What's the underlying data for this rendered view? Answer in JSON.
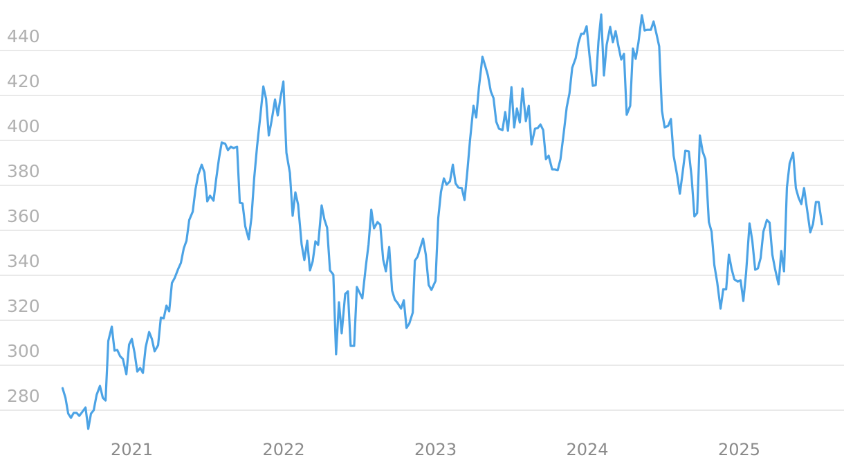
{
  "chart_data": {
    "type": "line",
    "color": "#4ca3e5",
    "grid": true,
    "xlim": [
      2020.15,
      2025.69
    ],
    "xticks": [
      2021,
      2022,
      2023,
      2024,
      2025
    ],
    "ylim": [
      266,
      458
    ],
    "yticks": [
      280,
      300,
      320,
      340,
      360,
      380,
      400,
      420,
      440
    ],
    "x": [
      2020.544,
      2020.563,
      2020.581,
      2020.599,
      2020.617,
      2020.636,
      2020.654,
      2020.672,
      2020.695,
      2020.713,
      2020.731,
      2020.749,
      2020.768,
      2020.79,
      2020.809,
      2020.827,
      2020.845,
      2020.868,
      2020.886,
      2020.904,
      2020.923,
      2020.941,
      2020.964,
      2020.982,
      2021.0,
      2021.018,
      2021.036,
      2021.055,
      2021.073,
      2021.091,
      2021.114,
      2021.132,
      2021.15,
      2021.173,
      2021.191,
      2021.21,
      2021.228,
      2021.246,
      2021.264,
      2021.282,
      2021.305,
      2021.323,
      2021.342,
      2021.36,
      2021.378,
      2021.401,
      2021.419,
      2021.437,
      2021.46,
      2021.478,
      2021.497,
      2021.515,
      2021.538,
      2021.556,
      2021.574,
      2021.592,
      2021.615,
      2021.633,
      2021.652,
      2021.67,
      2021.693,
      2021.711,
      2021.729,
      2021.747,
      2021.77,
      2021.788,
      2021.806,
      2021.825,
      2021.847,
      2021.866,
      2021.884,
      2021.902,
      2021.92,
      2021.943,
      2021.961,
      2021.98,
      2021.998,
      2022.018,
      2022.041,
      2022.059,
      2022.077,
      2022.095,
      2022.118,
      2022.136,
      2022.155,
      2022.173,
      2022.191,
      2022.209,
      2022.227,
      2022.25,
      2022.268,
      2022.286,
      2022.305,
      2022.327,
      2022.345,
      2022.364,
      2022.382,
      2022.405,
      2022.423,
      2022.441,
      2022.464,
      2022.482,
      2022.5,
      2022.518,
      2022.541,
      2022.559,
      2022.577,
      2022.595,
      2022.618,
      2022.636,
      2022.655,
      2022.673,
      2022.695,
      2022.714,
      2022.732,
      2022.75,
      2022.773,
      2022.791,
      2022.809,
      2022.827,
      2022.85,
      2022.864,
      2022.882,
      2022.9,
      2022.918,
      2022.936,
      2022.955,
      2022.973,
      2023.0,
      2023.018,
      2023.036,
      2023.055,
      2023.073,
      2023.095,
      2023.114,
      2023.132,
      2023.15,
      2023.173,
      2023.191,
      2023.209,
      2023.227,
      2023.25,
      2023.268,
      2023.286,
      2023.309,
      2023.327,
      2023.345,
      2023.364,
      2023.382,
      2023.4,
      2023.418,
      2023.441,
      2023.459,
      2023.477,
      2023.5,
      2023.518,
      2023.536,
      2023.555,
      2023.573,
      2023.595,
      2023.614,
      2023.632,
      2023.655,
      2023.673,
      2023.691,
      2023.709,
      2023.727,
      2023.745,
      2023.768,
      2023.786,
      2023.805,
      2023.823,
      2023.845,
      2023.864,
      2023.882,
      2023.9,
      2023.923,
      2023.941,
      2023.959,
      2023.977,
      2023.995,
      2024.014,
      2024.036,
      2024.055,
      2024.073,
      2024.091,
      2024.109,
      2024.127,
      2024.15,
      2024.168,
      2024.186,
      2024.205,
      2024.223,
      2024.241,
      2024.259,
      2024.282,
      2024.3,
      2024.318,
      2024.336,
      2024.359,
      2024.377,
      2024.395,
      2024.418,
      2024.436,
      2024.455,
      2024.473,
      2024.491,
      2024.509,
      2024.532,
      2024.55,
      2024.568,
      2024.591,
      2024.609,
      2024.627,
      2024.645,
      2024.668,
      2024.686,
      2024.705,
      2024.723,
      2024.741,
      2024.759,
      2024.777,
      2024.8,
      2024.818,
      2024.836,
      2024.855,
      2024.877,
      2024.895,
      2024.914,
      2024.932,
      2024.95,
      2024.968,
      2024.991,
      2025.009,
      2025.027,
      2025.045,
      2025.068,
      2025.086,
      2025.105,
      2025.123,
      2025.141,
      2025.159,
      2025.182,
      2025.2,
      2025.218,
      2025.236,
      2025.259,
      2025.277,
      2025.295,
      2025.314,
      2025.332,
      2025.355,
      2025.373,
      2025.391,
      2025.409,
      2025.427,
      2025.445,
      2025.468,
      2025.486,
      2025.505,
      2025.523,
      2025.545
    ],
    "values": [
      289.8,
      285.5,
      278.5,
      276.6,
      278.8,
      278.8,
      277.5,
      279.1,
      281.2,
      271.7,
      278.5,
      280,
      286.8,
      290.8,
      285.5,
      284.3,
      310.8,
      317.2,
      306.5,
      306.8,
      304,
      302.8,
      296,
      309.2,
      311.7,
      305.5,
      297.2,
      298.8,
      296.6,
      308,
      314.8,
      311.7,
      306.2,
      308.9,
      321.2,
      320.9,
      326.5,
      324,
      336.6,
      338.8,
      342.8,
      345.5,
      352,
      355.4,
      364.6,
      368.3,
      378.2,
      384.6,
      389.2,
      385.8,
      372.9,
      375.4,
      373.2,
      383.1,
      392,
      399.1,
      398.5,
      395.7,
      397.2,
      396.6,
      397.2,
      372.3,
      372,
      361.8,
      356,
      365.8,
      383.4,
      397.5,
      411.4,
      424,
      418.5,
      402.2,
      408.6,
      418.2,
      411.1,
      419.4,
      426.2,
      394.5,
      385.5,
      366.5,
      376.9,
      371.4,
      353.8,
      346.8,
      355.4,
      342.2,
      346.2,
      355.1,
      353.5,
      371.1,
      364.9,
      361.2,
      342.2,
      340.3,
      304.9,
      328,
      314.2,
      331.7,
      332.9,
      308.6,
      308.6,
      334.8,
      332.3,
      329.8,
      344,
      353.8,
      369.2,
      360.9,
      363.7,
      362.5,
      347.1,
      341.8,
      352.6,
      333.2,
      329.2,
      327.7,
      325.2,
      328.9,
      316.6,
      318.5,
      323.4,
      346.5,
      348.3,
      352.3,
      356.3,
      349.2,
      335.7,
      333.5,
      337.5,
      365.5,
      377.2,
      383.1,
      380.3,
      381.8,
      389.2,
      380.9,
      379.1,
      378.8,
      373.5,
      385.8,
      400,
      415.4,
      410.2,
      423.7,
      437.2,
      433.2,
      428.9,
      421.8,
      418.8,
      408.3,
      405.2,
      404.6,
      412.6,
      404.3,
      423.7,
      405.8,
      414.2,
      408,
      423.1,
      408.6,
      415.4,
      398.2,
      405.2,
      405.5,
      407.1,
      404.6,
      391.7,
      393.2,
      387.1,
      387.1,
      386.8,
      391.7,
      403.7,
      414.8,
      420.9,
      432.3,
      436.6,
      443.4,
      447.4,
      447.4,
      450.8,
      437.8,
      424.3,
      424.6,
      444,
      456,
      428.9,
      442.5,
      450.5,
      443.7,
      448.6,
      441.8,
      436,
      438.5,
      411.4,
      415.4,
      440.9,
      436.3,
      443.4,
      455.7,
      448.9,
      449.2,
      449.2,
      452.9,
      447.4,
      441.8,
      413.2,
      405.8,
      406.5,
      409.5,
      393.2,
      384.6,
      376.3,
      385.5,
      395.4,
      395.1,
      384,
      366.2,
      367.7,
      402.2,
      395.1,
      391.7,
      363.7,
      359.4,
      344.6,
      336.9,
      325.2,
      333.8,
      333.8,
      349.2,
      342.8,
      338.2,
      337.2,
      337.8,
      328.6,
      340.9,
      363.1,
      355.4,
      342.5,
      343.1,
      347.7,
      359.4,
      364.6,
      363.4,
      349.2,
      342.8,
      336,
      350.8,
      341.8,
      379.1,
      389.8,
      394.5,
      378.8,
      374.5,
      371.7,
      378.8,
      370.2,
      359.1,
      362.8,
      372.6,
      372.6,
      362.8
    ]
  }
}
